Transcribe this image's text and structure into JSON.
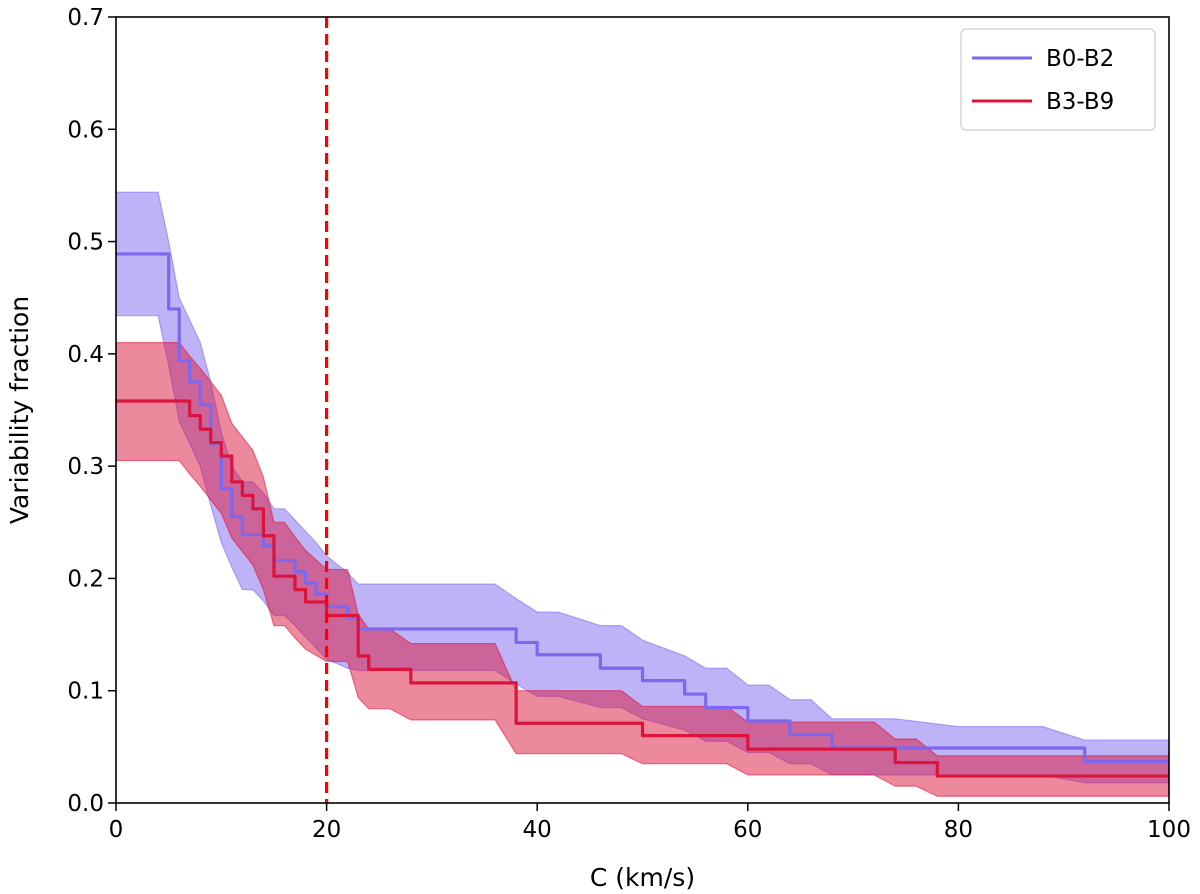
{
  "chart_data": {
    "type": "line",
    "xlabel": "C (km/s)",
    "ylabel": "Variability fraction",
    "xlim": [
      0,
      100
    ],
    "ylim": [
      0,
      0.7
    ],
    "xticks": [
      0,
      20,
      40,
      60,
      80,
      100
    ],
    "xtick_labels": [
      "0",
      "20",
      "40",
      "60",
      "80",
      "100"
    ],
    "yticks": [
      0.0,
      0.1,
      0.2,
      0.3,
      0.4,
      0.5,
      0.6,
      0.7
    ],
    "ytick_labels": [
      "0.0",
      "0.1",
      "0.2",
      "0.3",
      "0.4",
      "0.5",
      "0.6",
      "0.7"
    ],
    "grid": false,
    "legend_position": "top-right",
    "vline": {
      "x": 20,
      "style": "dashed",
      "color": "#ff0000"
    },
    "series": [
      {
        "name": "B0-B2",
        "color": "#7b68ee",
        "band_color": "#7b68ee",
        "x": [
          0,
          4,
          5,
          6,
          7,
          8,
          9,
          10,
          11,
          12,
          13,
          14,
          15,
          16,
          17,
          18,
          19,
          20,
          22,
          23,
          30,
          36,
          38,
          40,
          42,
          46,
          48,
          50,
          54,
          56,
          58,
          60,
          62,
          64,
          66,
          68,
          74,
          80,
          88,
          92,
          100
        ],
        "y": [
          0.489,
          0.489,
          0.44,
          0.394,
          0.375,
          0.355,
          0.32,
          0.28,
          0.255,
          0.239,
          0.239,
          0.229,
          0.216,
          0.216,
          0.206,
          0.196,
          0.186,
          0.175,
          0.165,
          0.155,
          0.155,
          0.155,
          0.143,
          0.132,
          0.132,
          0.12,
          0.12,
          0.109,
          0.097,
          0.085,
          0.085,
          0.073,
          0.073,
          0.061,
          0.061,
          0.049,
          0.049,
          0.049,
          0.049,
          0.037,
          0.037
        ],
        "lower": [
          0.434,
          0.434,
          0.39,
          0.34,
          0.32,
          0.3,
          0.265,
          0.232,
          0.21,
          0.19,
          0.19,
          0.18,
          0.167,
          0.167,
          0.158,
          0.148,
          0.138,
          0.128,
          0.12,
          0.118,
          0.118,
          0.118,
          0.106,
          0.095,
          0.095,
          0.085,
          0.085,
          0.075,
          0.065,
          0.055,
          0.055,
          0.045,
          0.045,
          0.035,
          0.035,
          0.025,
          0.025,
          0.025,
          0.025,
          0.018,
          0.018
        ],
        "upper": [
          0.544,
          0.544,
          0.5,
          0.45,
          0.43,
          0.41,
          0.375,
          0.33,
          0.3,
          0.286,
          0.286,
          0.276,
          0.262,
          0.262,
          0.252,
          0.242,
          0.232,
          0.22,
          0.205,
          0.195,
          0.195,
          0.195,
          0.182,
          0.17,
          0.17,
          0.158,
          0.158,
          0.145,
          0.131,
          0.12,
          0.12,
          0.105,
          0.105,
          0.092,
          0.092,
          0.075,
          0.075,
          0.068,
          0.068,
          0.056,
          0.056
        ]
      },
      {
        "name": "B3-B9",
        "color": "#dc143c",
        "band_color": "#dc143c",
        "x": [
          0,
          6,
          7,
          8,
          9,
          10,
          11,
          12,
          13,
          14,
          15,
          16,
          17,
          18,
          20,
          22,
          23,
          24,
          26,
          28,
          34,
          36,
          38,
          40,
          44,
          48,
          50,
          56,
          58,
          60,
          62,
          68,
          72,
          74,
          76,
          78,
          100
        ],
        "y": [
          0.358,
          0.358,
          0.345,
          0.333,
          0.321,
          0.309,
          0.286,
          0.274,
          0.262,
          0.238,
          0.202,
          0.202,
          0.19,
          0.179,
          0.167,
          0.167,
          0.131,
          0.119,
          0.119,
          0.107,
          0.107,
          0.107,
          0.071,
          0.071,
          0.071,
          0.071,
          0.06,
          0.06,
          0.06,
          0.048,
          0.048,
          0.048,
          0.048,
          0.036,
          0.036,
          0.024,
          0.024
        ],
        "lower": [
          0.305,
          0.305,
          0.293,
          0.282,
          0.27,
          0.258,
          0.236,
          0.224,
          0.212,
          0.19,
          0.158,
          0.158,
          0.147,
          0.137,
          0.126,
          0.126,
          0.094,
          0.084,
          0.084,
          0.074,
          0.074,
          0.074,
          0.044,
          0.044,
          0.044,
          0.044,
          0.035,
          0.035,
          0.035,
          0.025,
          0.025,
          0.025,
          0.025,
          0.015,
          0.015,
          0.006,
          0.006
        ],
        "upper": [
          0.41,
          0.41,
          0.398,
          0.387,
          0.375,
          0.363,
          0.338,
          0.326,
          0.314,
          0.29,
          0.25,
          0.25,
          0.237,
          0.225,
          0.208,
          0.208,
          0.168,
          0.155,
          0.155,
          0.142,
          0.142,
          0.142,
          0.1,
          0.1,
          0.1,
          0.1,
          0.086,
          0.086,
          0.086,
          0.072,
          0.072,
          0.072,
          0.072,
          0.057,
          0.057,
          0.042,
          0.042
        ]
      }
    ]
  }
}
